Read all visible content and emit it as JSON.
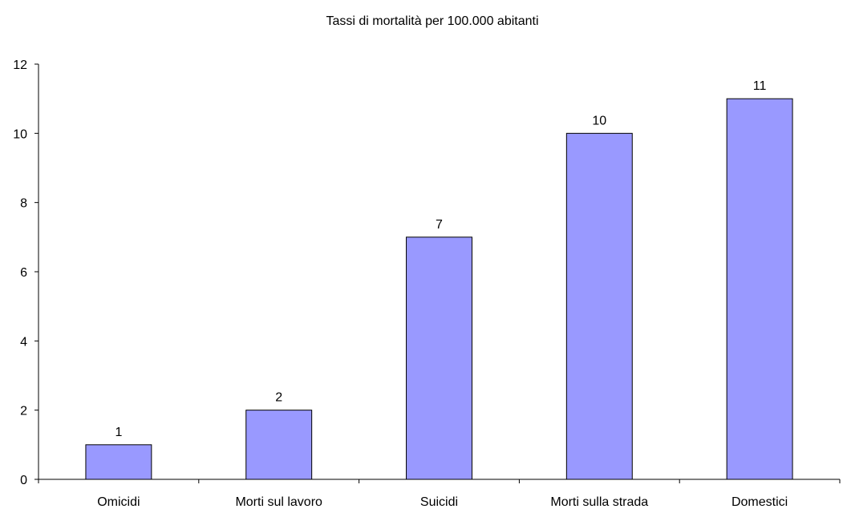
{
  "chart_data": {
    "type": "bar",
    "title": "Tassi di mortalità per 100.000 abitanti",
    "categories": [
      "Omicidi",
      "Morti sul lavoro",
      "Suicidi",
      "Morti sulla strada",
      "Domestici"
    ],
    "values": [
      1,
      2,
      7,
      10,
      11
    ],
    "data_labels": [
      "1",
      "2",
      "7",
      "10",
      "11"
    ],
    "ylim": [
      0,
      12
    ],
    "yticks": [
      0,
      2,
      4,
      6,
      8,
      10,
      12
    ],
    "grid": false,
    "legend": "none",
    "bar_color": "#9999ff"
  }
}
